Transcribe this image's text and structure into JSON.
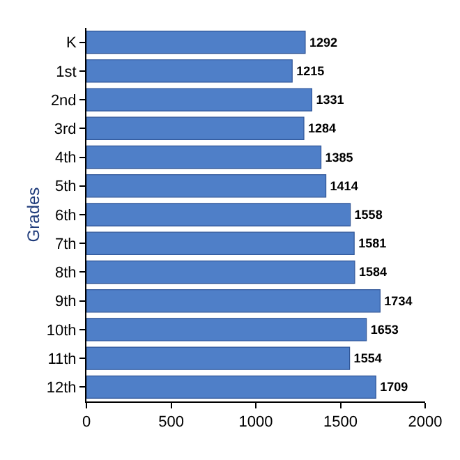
{
  "chart_data": {
    "type": "bar",
    "orientation": "horizontal",
    "ylabel": "Grades",
    "categories": [
      "K",
      "1st",
      "2nd",
      "3rd",
      "4th",
      "5th",
      "6th",
      "7th",
      "8th",
      "9th",
      "10th",
      "11th",
      "12th"
    ],
    "values": [
      1292,
      1215,
      1331,
      1284,
      1385,
      1414,
      1558,
      1581,
      1584,
      1734,
      1653,
      1554,
      1709
    ],
    "color": "#4f7fc8",
    "xlim": [
      0,
      2000
    ],
    "xticks": [
      0,
      500,
      1000,
      1500,
      2000
    ],
    "data_labels": true
  }
}
